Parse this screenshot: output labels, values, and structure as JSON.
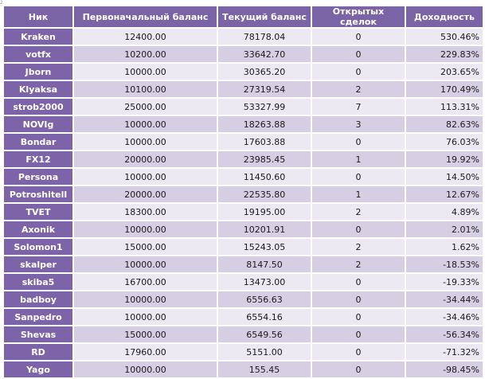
{
  "corner_mark": "2",
  "table": {
    "headers": {
      "nick": "Ник",
      "start": "Первоначальный баланс",
      "current": "Текущий баланс",
      "open": "Открытых сделок",
      "yield": "Доходность"
    },
    "rows": [
      {
        "nick": "Kraken",
        "start": "12400.00",
        "current": "78178.04",
        "open": "0",
        "yield": "530.46%"
      },
      {
        "nick": "votfx",
        "start": "10200.00",
        "current": "33642.70",
        "open": "0",
        "yield": "229.83%"
      },
      {
        "nick": "Jborn",
        "start": "10000.00",
        "current": "30365.20",
        "open": "0",
        "yield": "203.65%"
      },
      {
        "nick": "Klyaksa",
        "start": "10100.00",
        "current": "27319.54",
        "open": "2",
        "yield": "170.49%"
      },
      {
        "nick": "strob2000",
        "start": "25000.00",
        "current": "53327.99",
        "open": "7",
        "yield": "113.31%"
      },
      {
        "nick": "NOVIg",
        "start": "10000.00",
        "current": "18263.88",
        "open": "3",
        "yield": "82.63%"
      },
      {
        "nick": "Bondar",
        "start": "10000.00",
        "current": "17603.88",
        "open": "0",
        "yield": "76.03%"
      },
      {
        "nick": "FX12",
        "start": "20000.00",
        "current": "23985.45",
        "open": "1",
        "yield": "19.92%"
      },
      {
        "nick": "Persona",
        "start": "10000.00",
        "current": "11450.60",
        "open": "0",
        "yield": "14.50%"
      },
      {
        "nick": "Potroshitell",
        "start": "20000.00",
        "current": "22535.80",
        "open": "1",
        "yield": "12.67%"
      },
      {
        "nick": "TVET",
        "start": "18300.00",
        "current": "19195.00",
        "open": "2",
        "yield": "4.89%"
      },
      {
        "nick": "Axonik",
        "start": "10000.00",
        "current": "10201.91",
        "open": "0",
        "yield": "2.01%"
      },
      {
        "nick": "Solomon1",
        "start": "15000.00",
        "current": "15243.05",
        "open": "2",
        "yield": "1.62%"
      },
      {
        "nick": "skalper",
        "start": "10000.00",
        "current": "8147.50",
        "open": "2",
        "yield": "-18.53%"
      },
      {
        "nick": "skiba5",
        "start": "16700.00",
        "current": "13473.00",
        "open": "0",
        "yield": "-19.33%"
      },
      {
        "nick": "badboy",
        "start": "10000.00",
        "current": "6556.63",
        "open": "0",
        "yield": "-34.44%"
      },
      {
        "nick": "Sanpedro",
        "start": "10000.00",
        "current": "6554.16",
        "open": "0",
        "yield": "-34.46%"
      },
      {
        "nick": "Shevas",
        "start": "15000.00",
        "current": "6549.56",
        "open": "0",
        "yield": "-56.34%"
      },
      {
        "nick": "RD",
        "start": "17960.00",
        "current": "5151.00",
        "open": "0",
        "yield": "-71.32%"
      },
      {
        "nick": "Yago",
        "start": "10000.00",
        "current": "155.45",
        "open": "0",
        "yield": "-98.45%"
      }
    ]
  }
}
